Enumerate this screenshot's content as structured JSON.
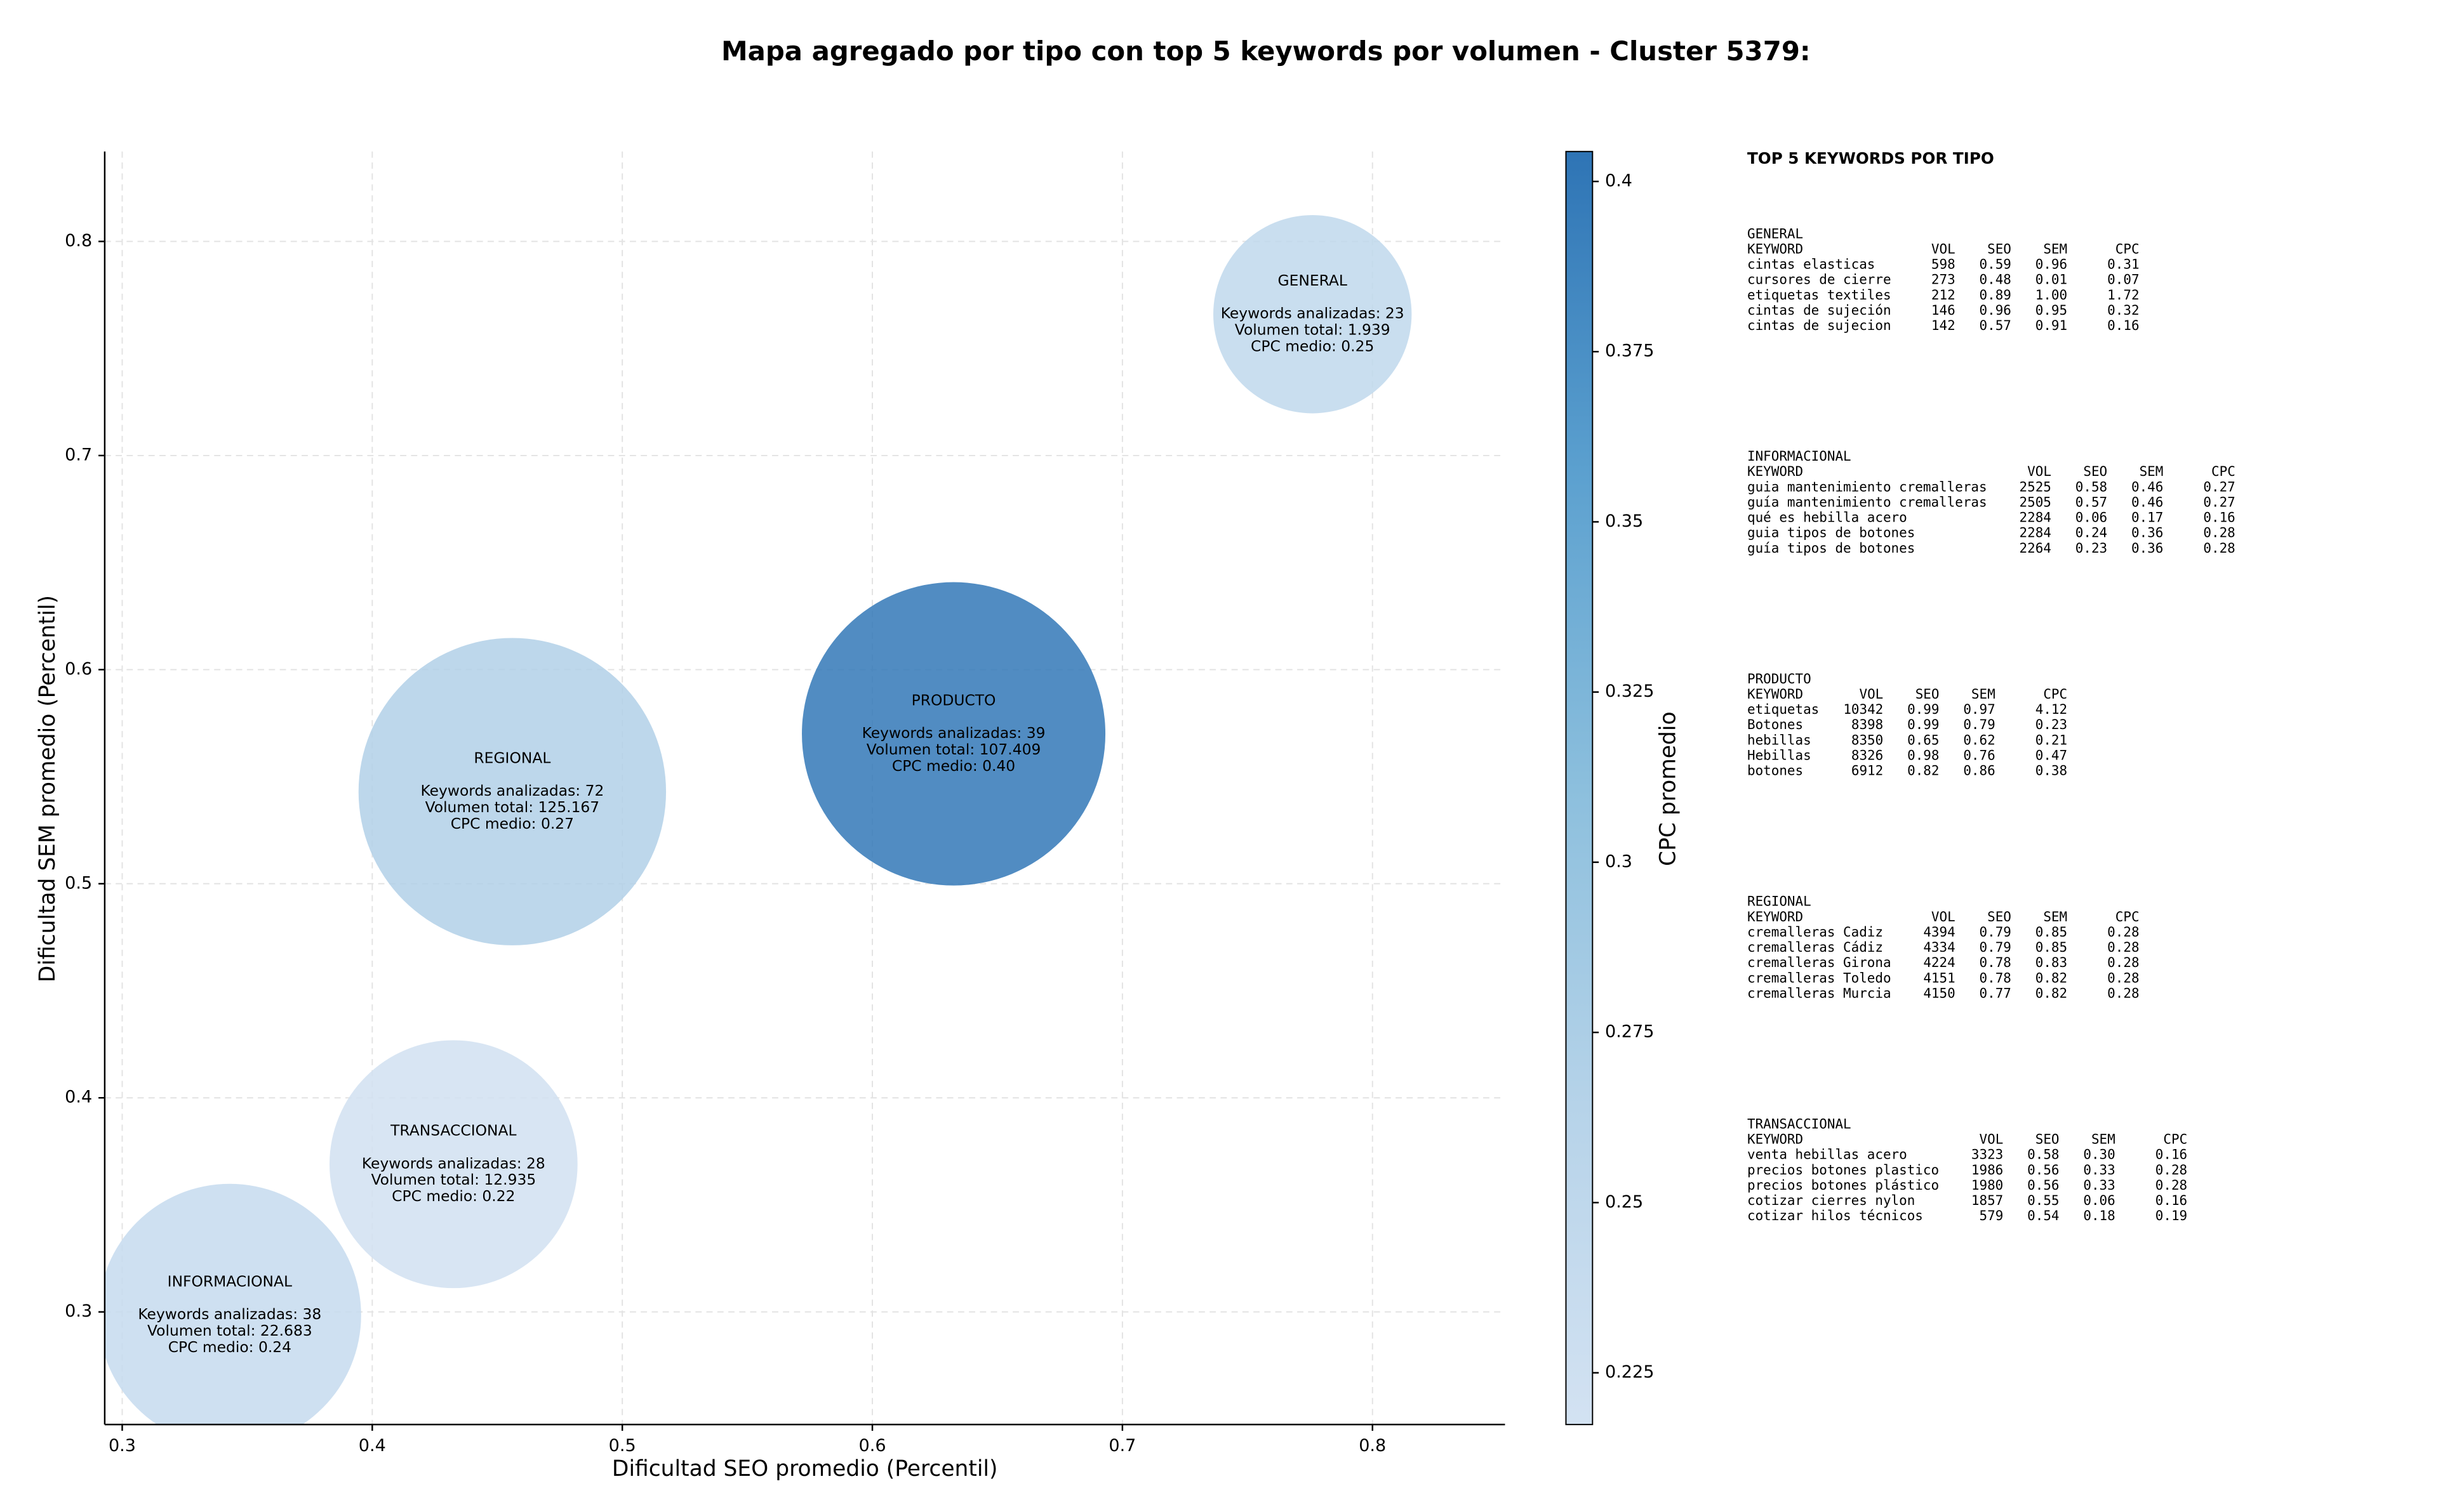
{
  "chart_data": {
    "type": "bubble",
    "title": "Mapa agregado por tipo con top 5 keywords por volumen - Cluster 5379:",
    "x_label": "Dificultad SEO promedio (Percentil)",
    "y_label": "Dificultad SEM promedio (Percentil)",
    "colorbar_label": "CPC promedio",
    "xlim": [
      0.293,
      0.853
    ],
    "ylim": [
      0.2474,
      0.842
    ],
    "xticks": [
      0.3,
      0.4,
      0.5,
      0.6,
      0.7,
      0.8
    ],
    "yticks": [
      0.3,
      0.4,
      0.5,
      0.6,
      0.7,
      0.8
    ],
    "clim": [
      0.2174,
      0.4044
    ],
    "cticks": [
      0.225,
      0.25,
      0.275,
      0.3,
      0.325,
      0.35,
      0.375,
      0.4
    ],
    "colorscale": [
      "#d3e2f2",
      "#b6d3e9",
      "#8cbfdd",
      "#5ba0cf",
      "#2e74b5"
    ],
    "grid": true,
    "points": [
      {
        "name": "GENERAL",
        "x": 0.776,
        "y": 0.766,
        "size": 1939,
        "cpc": 0.25,
        "keywords_label": "Keywords analizadas: 23",
        "size_label": "Volumen total: 1.939",
        "cpc_label": "CPC medio: 0.25"
      },
      {
        "name": "PRODUCTO",
        "x": 0.6325,
        "y": 0.57,
        "size": 107409,
        "cpc": 0.4,
        "keywords_label": "Keywords analizadas: 39",
        "size_label": "Volumen total: 107.409",
        "cpc_label": "CPC medio: 0.40"
      },
      {
        "name": "REGIONAL",
        "x": 0.456,
        "y": 0.543,
        "size": 125167,
        "cpc": 0.27,
        "keywords_label": "Keywords analizadas: 72",
        "size_label": "Volumen total: 125.167",
        "cpc_label": "CPC medio: 0.27"
      },
      {
        "name": "TRANSACCIONAL",
        "x": 0.4325,
        "y": 0.369,
        "size": 12935,
        "cpc": 0.22,
        "keywords_label": "Keywords analizadas: 28",
        "size_label": "Volumen total: 12.935",
        "cpc_label": "CPC medio: 0.22"
      },
      {
        "name": "INFORMACIONAL",
        "x": 0.343,
        "y": 0.2985,
        "size": 22683,
        "cpc": 0.24,
        "keywords_label": "Keywords analizadas: 38",
        "size_label": "Volumen total: 22.683",
        "cpc_label": "CPC medio: 0.24"
      }
    ]
  },
  "panel": {
    "title": "TOP 5 KEYWORDS POR TIPO",
    "header": [
      "KEYWORD",
      "VOL",
      "SEO",
      "SEM",
      "CPC"
    ],
    "groups": [
      {
        "name": "GENERAL",
        "rows": [
          [
            "cintas elasticas",
            "598",
            "0.59",
            "0.96",
            "0.31"
          ],
          [
            "cursores de cierre",
            "273",
            "0.48",
            "0.01",
            "0.07"
          ],
          [
            "etiquetas textiles",
            "212",
            "0.89",
            "1.00",
            "1.72"
          ],
          [
            "cintas de sujeción",
            "146",
            "0.96",
            "0.95",
            "0.32"
          ],
          [
            "cintas de sujecion",
            "142",
            "0.57",
            "0.91",
            "0.16"
          ]
        ]
      },
      {
        "name": "INFORMACIONAL",
        "rows": [
          [
            "guia mantenimiento cremalleras",
            "2525",
            "0.58",
            "0.46",
            "0.27"
          ],
          [
            "guía mantenimiento cremalleras",
            "2505",
            "0.57",
            "0.46",
            "0.27"
          ],
          [
            "qué es hebilla acero",
            "2284",
            "0.06",
            "0.17",
            "0.16"
          ],
          [
            "guia tipos de botones",
            "2284",
            "0.24",
            "0.36",
            "0.28"
          ],
          [
            "guía tipos de botones",
            "2264",
            "0.23",
            "0.36",
            "0.28"
          ]
        ]
      },
      {
        "name": "PRODUCTO",
        "rows": [
          [
            "etiquetas",
            "10342",
            "0.99",
            "0.97",
            "4.12"
          ],
          [
            "Botones",
            "8398",
            "0.99",
            "0.79",
            "0.23"
          ],
          [
            "hebillas",
            "8350",
            "0.65",
            "0.62",
            "0.21"
          ],
          [
            "Hebillas",
            "8326",
            "0.98",
            "0.76",
            "0.47"
          ],
          [
            "botones",
            "6912",
            "0.82",
            "0.86",
            "0.38"
          ]
        ]
      },
      {
        "name": "REGIONAL",
        "rows": [
          [
            "cremalleras Cadiz",
            "4394",
            "0.79",
            "0.85",
            "0.28"
          ],
          [
            "cremalleras Cádiz",
            "4334",
            "0.79",
            "0.85",
            "0.28"
          ],
          [
            "cremalleras Girona",
            "4224",
            "0.78",
            "0.83",
            "0.28"
          ],
          [
            "cremalleras Toledo",
            "4151",
            "0.78",
            "0.82",
            "0.28"
          ],
          [
            "cremalleras Murcia",
            "4150",
            "0.77",
            "0.82",
            "0.28"
          ]
        ]
      },
      {
        "name": "TRANSACCIONAL",
        "rows": [
          [
            "venta hebillas acero",
            "3323",
            "0.58",
            "0.30",
            "0.16"
          ],
          [
            "precios botones plastico",
            "1986",
            "0.56",
            "0.33",
            "0.28"
          ],
          [
            "precios botones plástico",
            "1980",
            "0.56",
            "0.33",
            "0.28"
          ],
          [
            "cotizar cierres nylon",
            "1857",
            "0.55",
            "0.06",
            "0.16"
          ],
          [
            "cotizar hilos técnicos",
            "579",
            "0.54",
            "0.18",
            "0.19"
          ]
        ]
      }
    ]
  }
}
